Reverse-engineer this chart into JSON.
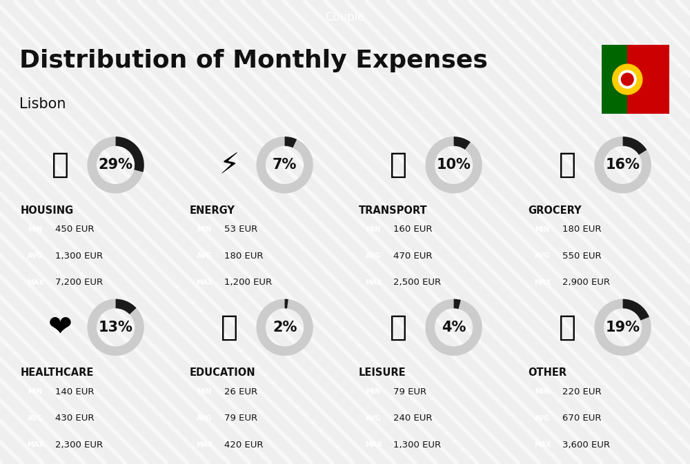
{
  "title": "Distribution of Monthly Expenses",
  "subtitle": "Lisbon",
  "header_label": "Couple",
  "background_color": "#efefef",
  "categories": [
    {
      "name": "HOUSING",
      "pct": 29,
      "min": "450 EUR",
      "avg": "1,300 EUR",
      "max": "7,200 EUR"
    },
    {
      "name": "ENERGY",
      "pct": 7,
      "min": "53 EUR",
      "avg": "180 EUR",
      "max": "1,200 EUR"
    },
    {
      "name": "TRANSPORT",
      "pct": 10,
      "min": "160 EUR",
      "avg": "470 EUR",
      "max": "2,500 EUR"
    },
    {
      "name": "GROCERY",
      "pct": 16,
      "min": "180 EUR",
      "avg": "550 EUR",
      "max": "2,900 EUR"
    },
    {
      "name": "HEALTHCARE",
      "pct": 13,
      "min": "140 EUR",
      "avg": "430 EUR",
      "max": "2,300 EUR"
    },
    {
      "name": "EDUCATION",
      "pct": 2,
      "min": "26 EUR",
      "avg": "79 EUR",
      "max": "420 EUR"
    },
    {
      "name": "LEISURE",
      "pct": 4,
      "min": "79 EUR",
      "avg": "240 EUR",
      "max": "1,300 EUR"
    },
    {
      "name": "OTHER",
      "pct": 19,
      "min": "220 EUR",
      "avg": "670 EUR",
      "max": "3,600 EUR"
    }
  ],
  "min_color": "#22bb33",
  "avg_color": "#1a6ec7",
  "max_color": "#cc1111",
  "donut_filled_color": "#1a1a1a",
  "donut_empty_color": "#cccccc",
  "stripe_color": "#e8e8e8",
  "flag_green": "#006600",
  "flag_red": "#cc0000",
  "flag_yellow": "#ffcc00"
}
